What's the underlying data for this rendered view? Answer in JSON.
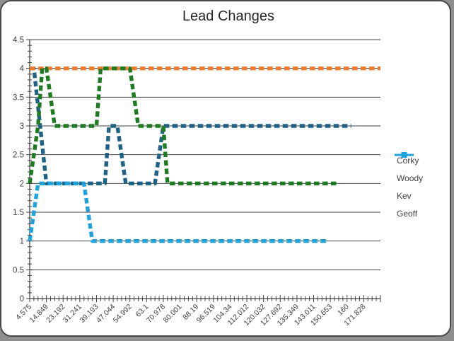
{
  "frame": {
    "page_background": "#8f8f8f",
    "border_color": "#4a4a4a",
    "background": "#ffffff"
  },
  "chart_data": {
    "type": "line",
    "title": "Lead Changes",
    "xlabel": "",
    "ylabel": "",
    "ylim": [
      0,
      4.5
    ],
    "ytick_step": 0.5,
    "y_minor_tick_step": 0.1,
    "y_tick_labels": [
      "0",
      "0.5",
      "1",
      "1.5",
      "2",
      "2.5",
      "3",
      "3.5",
      "4",
      "4.5"
    ],
    "grid": true,
    "num_points": 85,
    "label_every_n_points": 4,
    "x_tick_labels": [
      "4.575",
      "14.849",
      "23.192",
      "31.241",
      "39.193",
      "47.044",
      "54.992",
      "63.1",
      "70.978",
      "80.001",
      "88.19",
      "96.519",
      "104.34",
      "112.012",
      "120.032",
      "127.692",
      "135.349",
      "143.011",
      "150.653",
      "160",
      "171.828"
    ],
    "axis_color": "#404040",
    "gridline_color": "#404040",
    "legend_position": "right",
    "line_style": "thick-square-dash",
    "series": [
      {
        "name": "Corky",
        "color": "#1E6386",
        "runs_idx_value": [
          [
            0,
            1,
            4
          ],
          [
            4,
            18,
            2
          ],
          [
            19,
            21,
            3
          ],
          [
            23,
            30,
            2
          ],
          [
            32,
            77,
            3
          ]
        ]
      },
      {
        "name": "Woody",
        "color": "#ED7D31",
        "runs_idx_value": [
          [
            0,
            84,
            4
          ]
        ]
      },
      {
        "name": "Kev",
        "color": "#1E7B22",
        "runs_idx_value": [
          [
            0,
            0,
            2
          ],
          [
            2,
            2,
            3
          ],
          [
            3,
            4,
            4
          ],
          [
            6,
            16,
            3
          ],
          [
            17,
            24,
            4
          ],
          [
            26,
            32,
            3
          ],
          [
            33,
            74,
            2
          ]
        ]
      },
      {
        "name": "Geoff",
        "color": "#1FA3DC",
        "runs_idx_value": [
          [
            0,
            0,
            1
          ],
          [
            2,
            13,
            2
          ],
          [
            15,
            71,
            1
          ]
        ]
      }
    ]
  }
}
